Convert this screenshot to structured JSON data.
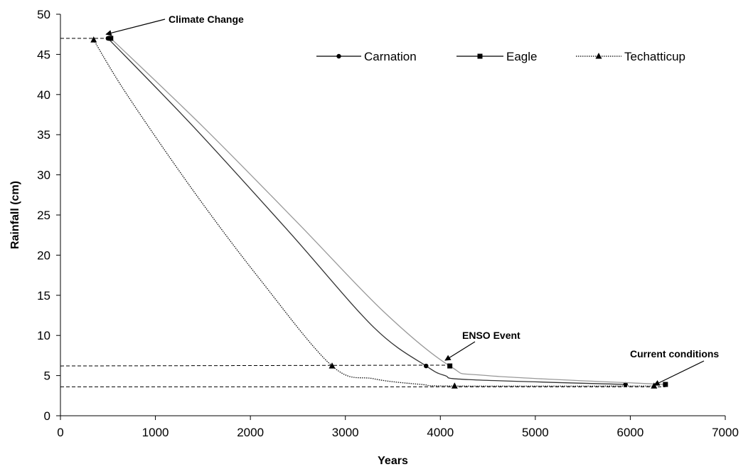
{
  "chart_data": {
    "type": "line",
    "title": "",
    "xlabel": "Years",
    "ylabel": "Rainfall (cm)",
    "xlim": [
      0,
      7000
    ],
    "ylim": [
      0,
      50
    ],
    "xticks": [
      0,
      1000,
      2000,
      3000,
      4000,
      5000,
      6000,
      7000
    ],
    "yticks": [
      0,
      5,
      10,
      15,
      20,
      25,
      30,
      35,
      40,
      45,
      50
    ],
    "grid": false,
    "legend_position": "top-right",
    "series": [
      {
        "name": "Carnation",
        "marker": "circle",
        "line_style": "solid",
        "color": "#333333",
        "marker_points": [
          [
            500,
            47
          ],
          [
            3850,
            6.2
          ],
          [
            5950,
            3.9
          ]
        ],
        "curve": [
          [
            500,
            47
          ],
          [
            1400,
            36
          ],
          [
            2400,
            23
          ],
          [
            3300,
            11
          ],
          [
            3850,
            6.2
          ],
          [
            4050,
            5
          ],
          [
            4300,
            4.5
          ],
          [
            5950,
            3.9
          ]
        ]
      },
      {
        "name": "Eagle",
        "marker": "square",
        "line_style": "solid",
        "color": "#999999",
        "marker_points": [
          [
            530,
            47
          ],
          [
            4100,
            6.2
          ],
          [
            6370,
            3.9
          ]
        ],
        "curve": [
          [
            530,
            47
          ],
          [
            1500,
            36
          ],
          [
            2500,
            24
          ],
          [
            3400,
            13
          ],
          [
            4100,
            6.2
          ],
          [
            4500,
            5
          ],
          [
            6370,
            3.9
          ]
        ]
      },
      {
        "name": "Techatticup",
        "marker": "triangle",
        "line_style": "dotted",
        "color": "#111111",
        "marker_points": [
          [
            350,
            46.8
          ],
          [
            2860,
            6.2
          ],
          [
            4150,
            3.7
          ],
          [
            6250,
            3.7
          ]
        ],
        "curve": [
          [
            350,
            46.8
          ],
          [
            700,
            40
          ],
          [
            1400,
            28
          ],
          [
            2100,
            17
          ],
          [
            2860,
            6.2
          ],
          [
            3300,
            4.6
          ],
          [
            3800,
            3.9
          ],
          [
            4150,
            3.7
          ],
          [
            6250,
            3.7
          ]
        ]
      }
    ],
    "reference_lines": [
      {
        "from": [
          0,
          47
        ],
        "to": [
          550,
          47
        ]
      },
      {
        "from": [
          0,
          6.2
        ],
        "to": [
          4100,
          6.3
        ]
      },
      {
        "from": [
          0,
          3.6
        ],
        "to": [
          6370,
          3.6
        ]
      }
    ],
    "annotations": [
      {
        "text": "Climate Change",
        "point": [
          480,
          47.5
        ]
      },
      {
        "text": "ENSO Event",
        "point": [
          4050,
          6.9
        ]
      },
      {
        "text": "Current conditions",
        "point": [
          6250,
          3.8
        ]
      }
    ]
  }
}
